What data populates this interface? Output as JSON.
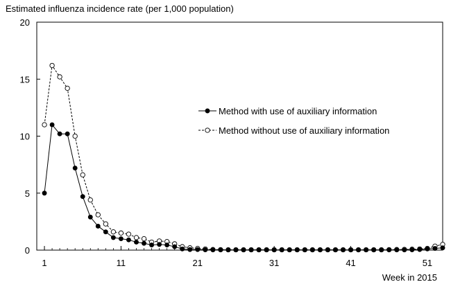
{
  "chart_data": {
    "type": "line",
    "title": "Estimated influenza incidence rate (per 1,000 population)",
    "xlabel": "Week in 2015",
    "ylabel": "",
    "xlim": [
      0,
      53
    ],
    "ylim": [
      0,
      20
    ],
    "xticks": [
      1,
      11,
      21,
      31,
      41,
      51
    ],
    "yticks": [
      0,
      5,
      10,
      15,
      20
    ],
    "grid": false,
    "legend_position": "center-right",
    "x": [
      1,
      2,
      3,
      4,
      5,
      6,
      7,
      8,
      9,
      10,
      11,
      12,
      13,
      14,
      15,
      16,
      17,
      18,
      19,
      20,
      21,
      22,
      23,
      24,
      25,
      26,
      27,
      28,
      29,
      30,
      31,
      32,
      33,
      34,
      35,
      36,
      37,
      38,
      39,
      40,
      41,
      42,
      43,
      44,
      45,
      46,
      47,
      48,
      49,
      50,
      51,
      52,
      53
    ],
    "series": [
      {
        "name": "Method with use of auxiliary information",
        "marker": "filled-circle",
        "line": "solid",
        "values": [
          5.0,
          11.0,
          10.2,
          10.2,
          7.2,
          4.7,
          2.9,
          2.1,
          1.6,
          1.1,
          1.0,
          0.9,
          0.7,
          0.6,
          0.45,
          0.5,
          0.45,
          0.3,
          0.1,
          0.05,
          0.05,
          0.03,
          0.02,
          0.02,
          0.02,
          0.02,
          0.02,
          0.02,
          0.02,
          0.02,
          0.02,
          0.02,
          0.02,
          0.02,
          0.02,
          0.02,
          0.02,
          0.02,
          0.02,
          0.02,
          0.02,
          0.02,
          0.02,
          0.02,
          0.02,
          0.02,
          0.02,
          0.02,
          0.03,
          0.05,
          0.1,
          0.15,
          0.2
        ]
      },
      {
        "name": "Method without use of auxiliary information",
        "marker": "open-circle",
        "line": "dashed",
        "values": [
          11.0,
          16.2,
          15.2,
          14.2,
          10.0,
          6.6,
          4.4,
          3.1,
          2.3,
          1.6,
          1.5,
          1.4,
          1.1,
          1.0,
          0.7,
          0.8,
          0.75,
          0.55,
          0.3,
          0.2,
          0.15,
          0.1,
          0.05,
          0.04,
          0.03,
          0.03,
          0.03,
          0.03,
          0.03,
          0.03,
          0.03,
          0.03,
          0.03,
          0.03,
          0.03,
          0.03,
          0.03,
          0.03,
          0.03,
          0.03,
          0.03,
          0.03,
          0.03,
          0.03,
          0.03,
          0.04,
          0.05,
          0.06,
          0.08,
          0.1,
          0.15,
          0.35,
          0.5
        ]
      }
    ]
  }
}
